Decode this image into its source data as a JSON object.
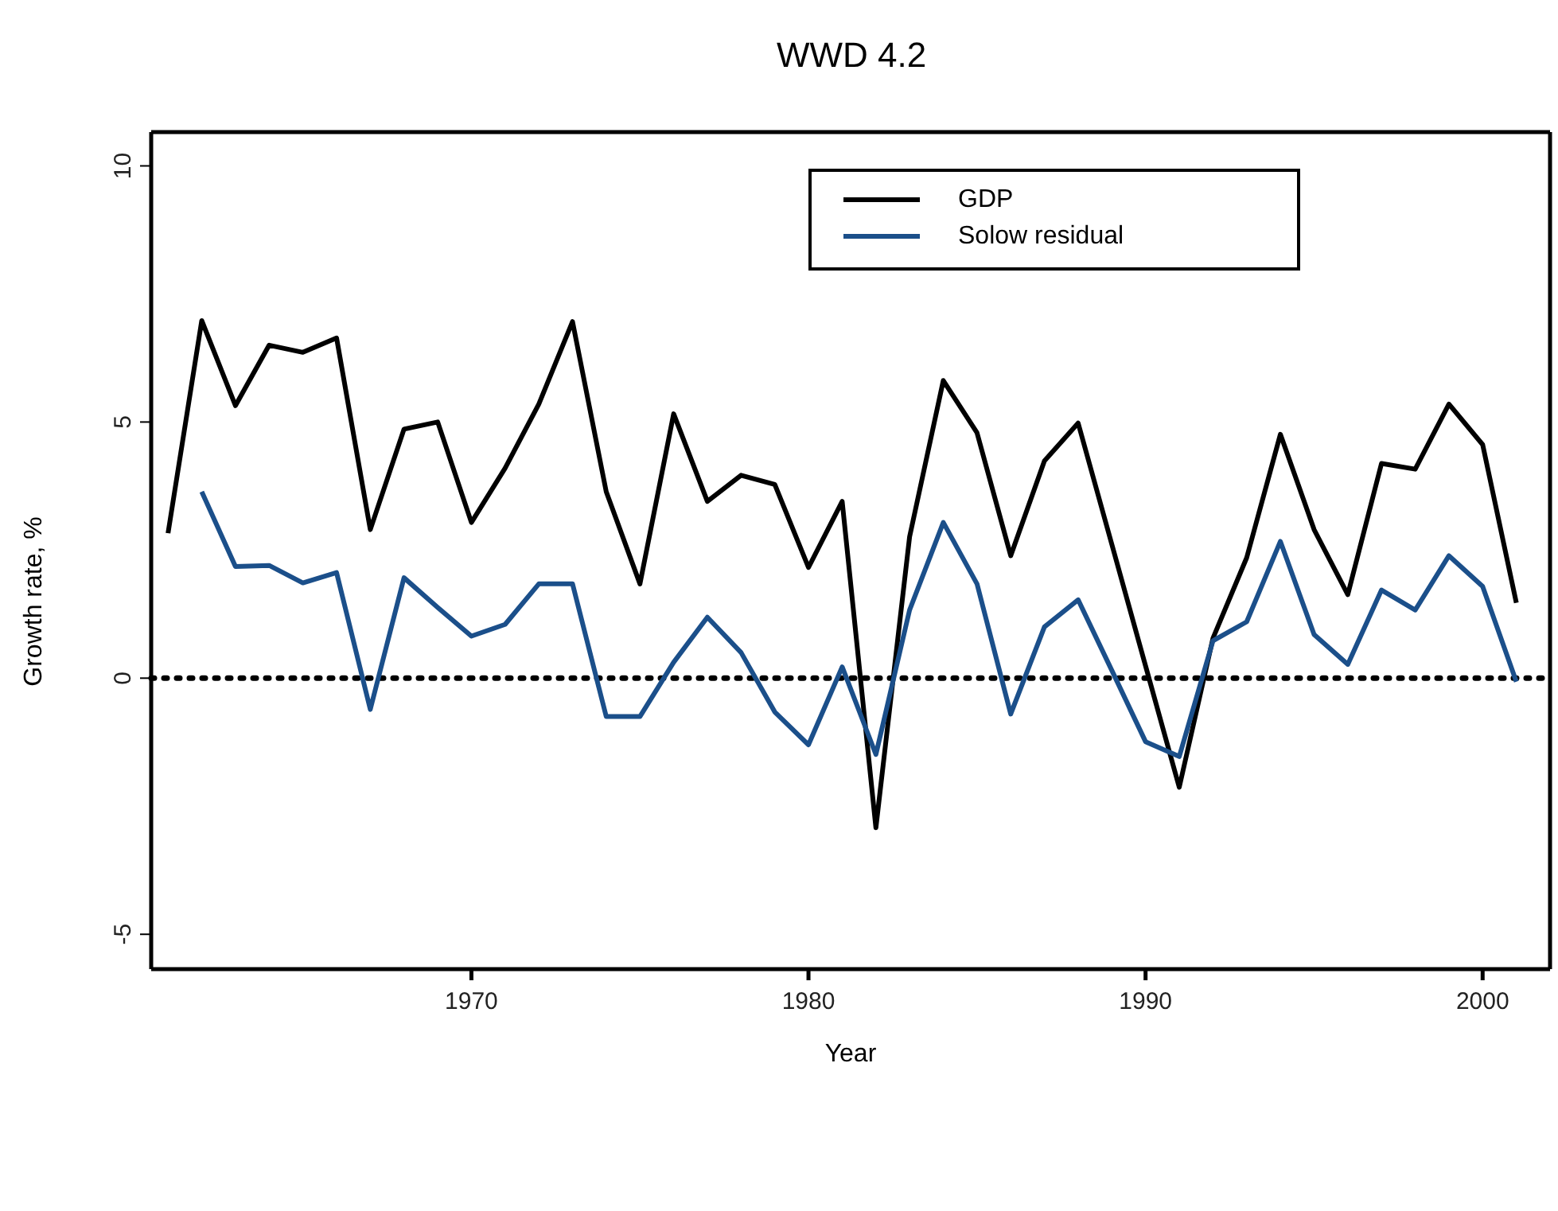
{
  "chart_data": {
    "type": "line",
    "title": "WWD 4.2",
    "xlabel": "Year",
    "ylabel": "Growth rate, %",
    "xlim": [
      1960.5,
      2002
    ],
    "xticks": [
      1970,
      1980,
      1990,
      2000
    ],
    "ylim": [
      -5.68,
      10.66
    ],
    "yticks": [
      -5,
      0,
      5,
      10
    ],
    "legend": "top",
    "marker": "none",
    "line_style": "solid",
    "ref_lines": [
      {
        "axis": "y",
        "value": 0,
        "color": "#000000",
        "line_style": "dotted"
      }
    ],
    "series": [
      {
        "name": "GDP",
        "color": "#000000",
        "x": [
          1961,
          1962,
          1963,
          1964,
          1965,
          1966,
          1967,
          1968,
          1969,
          1970,
          1971,
          1972,
          1973,
          1974,
          1975,
          1976,
          1977,
          1978,
          1979,
          1980,
          1981,
          1982,
          1983,
          1984,
          1985,
          1986,
          1987,
          1988,
          1989,
          1990,
          1991,
          1992,
          1993,
          1994,
          1995,
          1996,
          1997,
          1998,
          1999,
          2000,
          2001
        ],
        "values": [
          2.83,
          6.98,
          5.32,
          6.5,
          6.36,
          6.64,
          2.9,
          4.86,
          5.0,
          3.04,
          4.1,
          5.35,
          6.96,
          3.64,
          1.84,
          5.16,
          3.45,
          3.96,
          3.78,
          2.16,
          3.45,
          -2.92,
          2.76,
          5.81,
          4.79,
          2.39,
          4.24,
          4.98,
          2.61,
          0.24,
          -2.13,
          0.78,
          2.35,
          4.76,
          2.9,
          1.63,
          4.19,
          4.08,
          5.35,
          4.56,
          1.47
        ]
      },
      {
        "name": "Solow residual",
        "color": "#1b4f8a",
        "x": [
          1962,
          1963,
          1964,
          1965,
          1966,
          1967,
          1968,
          1969,
          1970,
          1971,
          1972,
          1973,
          1974,
          1975,
          1976,
          1977,
          1978,
          1979,
          1980,
          1981,
          1982,
          1983,
          1984,
          1985,
          1986,
          1987,
          1988,
          1989,
          1990,
          1991,
          1992,
          1993,
          1994,
          1995,
          1996,
          1997,
          1998,
          1999,
          2000,
          2001
        ],
        "values": [
          3.64,
          2.18,
          2.2,
          1.86,
          2.06,
          -0.61,
          1.96,
          1.38,
          0.82,
          1.05,
          1.84,
          1.84,
          -0.75,
          -0.75,
          0.31,
          1.19,
          0.5,
          -0.66,
          -1.3,
          0.22,
          -1.49,
          1.33,
          3.04,
          1.84,
          -0.7,
          1.0,
          1.53,
          0.15,
          -1.24,
          -1.53,
          0.73,
          1.1,
          2.67,
          0.85,
          0.27,
          1.72,
          1.33,
          2.39,
          1.79,
          -0.07
        ]
      }
    ]
  }
}
